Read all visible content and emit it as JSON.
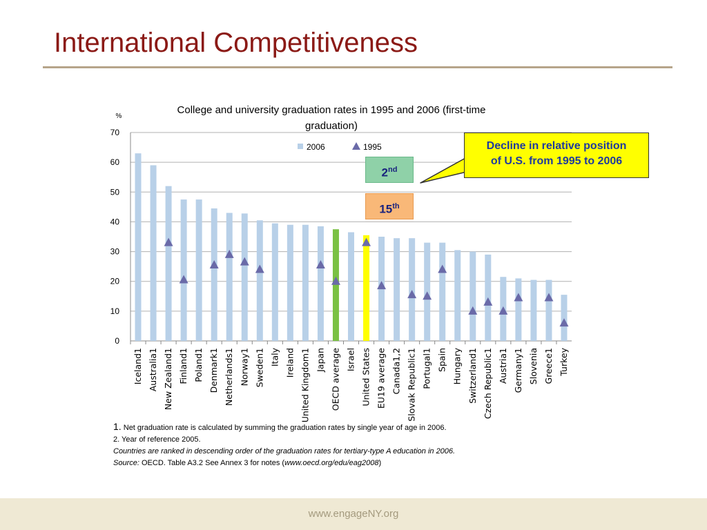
{
  "slide": {
    "title": "International Competitiveness",
    "footer_url": "www.engageNY.org"
  },
  "callout": {
    "line1": "Decline in relative position",
    "line2": "of U.S. from 1995 to 2006"
  },
  "rank_boxes": {
    "rank_2006": {
      "number": "2",
      "suffix": "nd"
    },
    "rank_1995": {
      "number": "15",
      "suffix": "th"
    }
  },
  "notes": {
    "note1_num": "1.",
    "note1_text": "Net graduation rate is calculated by summing the graduation rates by single year of age in 2006.",
    "note2": "2. Year of reference 2005.",
    "note3": "Countries are ranked in descending order  of the graduation rates for tertiary-type A education in 2006.",
    "source_label": "Source:",
    "source_text": " OECD. Table A3.2 See Annex 3 for notes (",
    "source_url": "www.oecd.org/edu/eag2008",
    "source_end": ")"
  },
  "chart_data": {
    "type": "bar",
    "title": "College and university graduation rates in 1995 and 2006 (first-time graduation)",
    "title_line1": "College and university graduation rates in 1995 and 2006 (first-time",
    "title_line2": "graduation)",
    "ylabel": "%",
    "ylim": [
      0,
      70
    ],
    "yticks": [
      0,
      10,
      20,
      30,
      40,
      50,
      60,
      70
    ],
    "grid": true,
    "legend_position": "top-center",
    "categories": [
      "Iceland1",
      "Australia1",
      "New Zealand1",
      "Finland1",
      "Poland1",
      "Denmark1",
      "Netherlands1",
      "Norway1",
      "Sweden1",
      "Italy",
      "Ireland",
      "United Kingdom1",
      "Japan",
      "OECD average",
      "Israel",
      "United States",
      "EU19 average",
      "Canada1,2",
      "Slovak Republic1",
      "Portugal1",
      "Spain",
      "Hungary",
      "Switzerland1",
      "Czech Republic1",
      "Austria1",
      "Germany1",
      "Slovenia",
      "Greece1",
      "Turkey"
    ],
    "series": [
      {
        "name": "2006",
        "mark": "bar",
        "color": "#b8d0e8",
        "values": [
          63,
          59,
          52,
          47.5,
          47.5,
          44.5,
          43,
          42.8,
          40.5,
          39.5,
          39,
          39,
          38.5,
          37.5,
          36.5,
          35.5,
          35,
          34.5,
          34.5,
          33,
          33,
          30.5,
          30,
          29,
          21.5,
          21,
          20.5,
          20.5,
          15.5
        ]
      },
      {
        "name": "1995",
        "mark": "triangle",
        "color": "#6a6aa8",
        "values": [
          null,
          null,
          33,
          20.5,
          null,
          25.5,
          29,
          26.5,
          24,
          null,
          null,
          null,
          25.5,
          20,
          null,
          33,
          18.5,
          null,
          15.5,
          15,
          24,
          null,
          10,
          13,
          10,
          14.5,
          null,
          14.5,
          6
        ]
      }
    ],
    "highlight_colors": {
      "OECD average": "#7ac143",
      "United States": "#ffff00"
    }
  }
}
